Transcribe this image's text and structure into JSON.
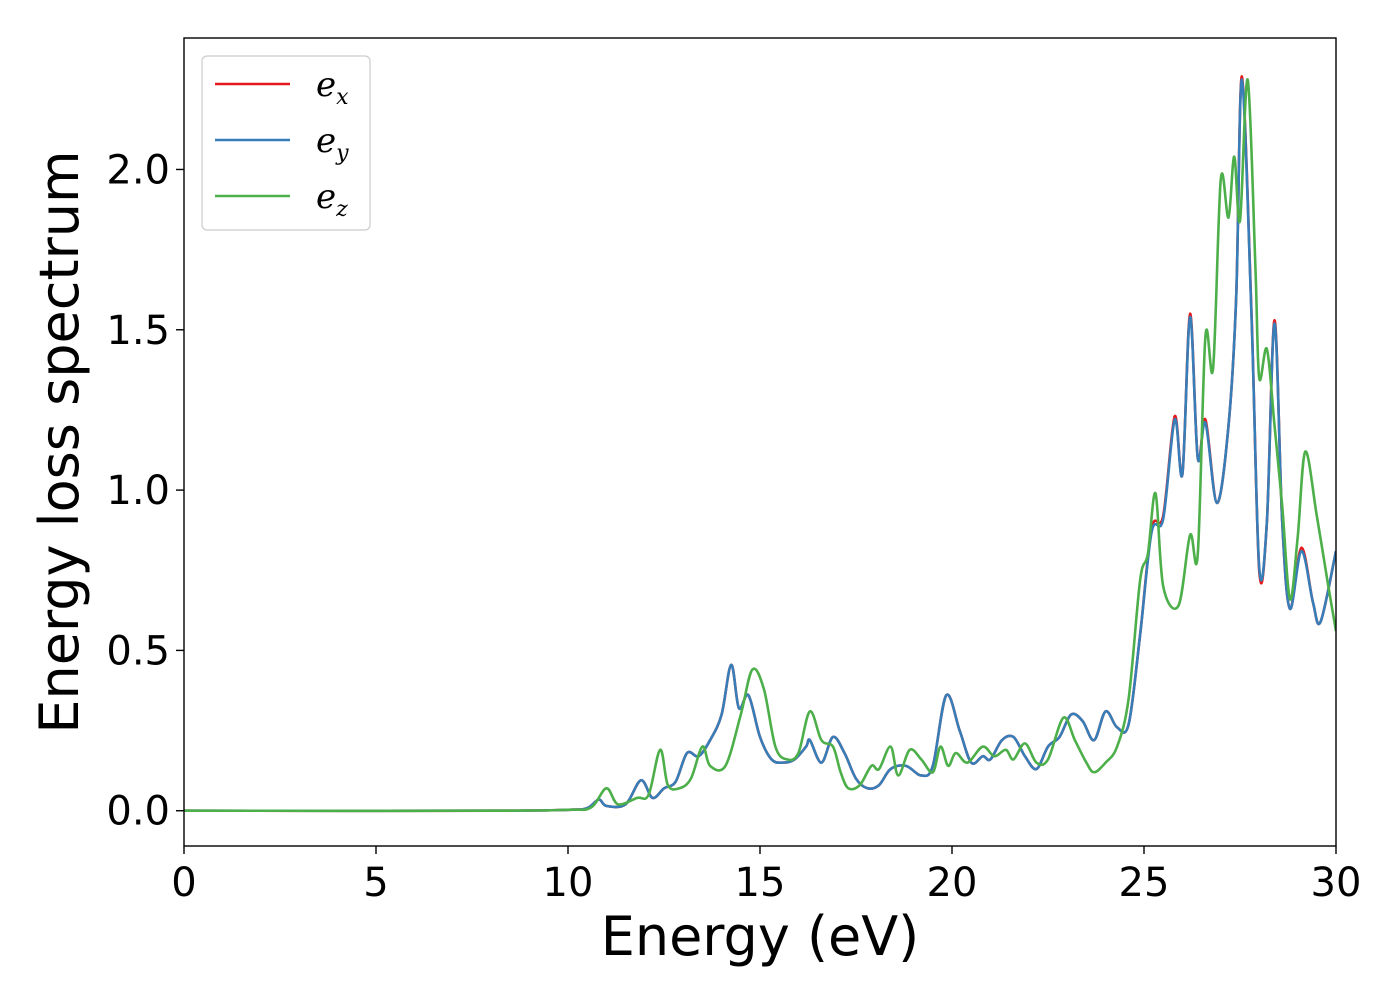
{
  "chart_data": {
    "type": "line",
    "title": "",
    "xlabel": "Energy (eV)",
    "ylabel": "Energy loss spectrum",
    "xlim": [
      0,
      30
    ],
    "ylim": [
      -0.11,
      2.41
    ],
    "xticks": [
      0,
      5,
      10,
      15,
      20,
      25,
      30
    ],
    "xtick_labels": [
      "0",
      "5",
      "10",
      "15",
      "20",
      "25",
      "30"
    ],
    "yticks": [
      0.0,
      0.5,
      1.0,
      1.5,
      2.0
    ],
    "ytick_labels": [
      "0.0",
      "0.5",
      "1.0",
      "1.5",
      "2.0"
    ],
    "grid": false,
    "legend_position": "top-left",
    "series": [
      {
        "name": "e_x",
        "label_base": "e",
        "label_sub": "x",
        "color": "#e41a1c",
        "points": [
          [
            0,
            0
          ],
          [
            8,
            0
          ],
          [
            10,
            0.003
          ],
          [
            10.5,
            0.008
          ],
          [
            10.8,
            0.035
          ],
          [
            11.0,
            0.015
          ],
          [
            11.5,
            0.02
          ],
          [
            11.9,
            0.095
          ],
          [
            12.2,
            0.04
          ],
          [
            12.5,
            0.07
          ],
          [
            12.8,
            0.09
          ],
          [
            13.1,
            0.18
          ],
          [
            13.4,
            0.17
          ],
          [
            13.7,
            0.22
          ],
          [
            14.0,
            0.3
          ],
          [
            14.25,
            0.455
          ],
          [
            14.45,
            0.32
          ],
          [
            14.7,
            0.36
          ],
          [
            15.0,
            0.23
          ],
          [
            15.3,
            0.16
          ],
          [
            15.6,
            0.15
          ],
          [
            15.9,
            0.16
          ],
          [
            16.2,
            0.2
          ],
          [
            16.3,
            0.22
          ],
          [
            16.6,
            0.15
          ],
          [
            16.9,
            0.23
          ],
          [
            17.2,
            0.18
          ],
          [
            17.5,
            0.1
          ],
          [
            17.8,
            0.07
          ],
          [
            18.1,
            0.08
          ],
          [
            18.4,
            0.13
          ],
          [
            18.8,
            0.14
          ],
          [
            19.2,
            0.11
          ],
          [
            19.5,
            0.14
          ],
          [
            19.85,
            0.36
          ],
          [
            20.2,
            0.25
          ],
          [
            20.5,
            0.15
          ],
          [
            20.8,
            0.17
          ],
          [
            21.0,
            0.16
          ],
          [
            21.3,
            0.22
          ],
          [
            21.6,
            0.23
          ],
          [
            21.9,
            0.17
          ],
          [
            22.2,
            0.13
          ],
          [
            22.5,
            0.2
          ],
          [
            22.8,
            0.23
          ],
          [
            23.1,
            0.3
          ],
          [
            23.4,
            0.28
          ],
          [
            23.7,
            0.22
          ],
          [
            24.0,
            0.31
          ],
          [
            24.3,
            0.26
          ],
          [
            24.6,
            0.27
          ],
          [
            24.9,
            0.55
          ],
          [
            25.2,
            0.88
          ],
          [
            25.5,
            0.92
          ],
          [
            25.8,
            1.23
          ],
          [
            26.0,
            1.05
          ],
          [
            26.2,
            1.55
          ],
          [
            26.4,
            1.1
          ],
          [
            26.6,
            1.22
          ],
          [
            26.9,
            0.96
          ],
          [
            27.2,
            1.2
          ],
          [
            27.4,
            1.6
          ],
          [
            27.55,
            2.29
          ],
          [
            27.8,
            1.55
          ],
          [
            28.0,
            0.75
          ],
          [
            28.2,
            0.9
          ],
          [
            28.4,
            1.53
          ],
          [
            28.6,
            0.9
          ],
          [
            28.8,
            0.63
          ],
          [
            29.1,
            0.82
          ],
          [
            29.4,
            0.65
          ],
          [
            29.6,
            0.59
          ],
          [
            30.0,
            0.81
          ]
        ]
      },
      {
        "name": "e_y",
        "label_base": "e",
        "label_sub": "y",
        "color": "#377eb8",
        "points": [
          [
            0,
            0
          ],
          [
            8,
            0
          ],
          [
            10,
            0.003
          ],
          [
            10.5,
            0.008
          ],
          [
            10.8,
            0.035
          ],
          [
            11.0,
            0.015
          ],
          [
            11.5,
            0.02
          ],
          [
            11.9,
            0.095
          ],
          [
            12.2,
            0.04
          ],
          [
            12.5,
            0.07
          ],
          [
            12.8,
            0.09
          ],
          [
            13.1,
            0.18
          ],
          [
            13.4,
            0.17
          ],
          [
            13.7,
            0.22
          ],
          [
            14.0,
            0.3
          ],
          [
            14.25,
            0.455
          ],
          [
            14.45,
            0.32
          ],
          [
            14.7,
            0.36
          ],
          [
            15.0,
            0.23
          ],
          [
            15.3,
            0.16
          ],
          [
            15.6,
            0.15
          ],
          [
            15.9,
            0.16
          ],
          [
            16.2,
            0.2
          ],
          [
            16.3,
            0.22
          ],
          [
            16.6,
            0.15
          ],
          [
            16.9,
            0.23
          ],
          [
            17.2,
            0.18
          ],
          [
            17.5,
            0.1
          ],
          [
            17.8,
            0.07
          ],
          [
            18.1,
            0.08
          ],
          [
            18.4,
            0.13
          ],
          [
            18.8,
            0.14
          ],
          [
            19.2,
            0.11
          ],
          [
            19.5,
            0.14
          ],
          [
            19.85,
            0.36
          ],
          [
            20.2,
            0.25
          ],
          [
            20.5,
            0.15
          ],
          [
            20.8,
            0.17
          ],
          [
            21.0,
            0.16
          ],
          [
            21.3,
            0.22
          ],
          [
            21.6,
            0.23
          ],
          [
            21.9,
            0.17
          ],
          [
            22.2,
            0.13
          ],
          [
            22.5,
            0.2
          ],
          [
            22.8,
            0.23
          ],
          [
            23.1,
            0.3
          ],
          [
            23.4,
            0.28
          ],
          [
            23.7,
            0.22
          ],
          [
            24.0,
            0.31
          ],
          [
            24.3,
            0.26
          ],
          [
            24.6,
            0.27
          ],
          [
            24.9,
            0.55
          ],
          [
            25.2,
            0.87
          ],
          [
            25.5,
            0.91
          ],
          [
            25.8,
            1.22
          ],
          [
            26.0,
            1.05
          ],
          [
            26.2,
            1.54
          ],
          [
            26.4,
            1.1
          ],
          [
            26.6,
            1.21
          ],
          [
            26.9,
            0.96
          ],
          [
            27.2,
            1.2
          ],
          [
            27.4,
            1.6
          ],
          [
            27.55,
            2.28
          ],
          [
            27.8,
            1.54
          ],
          [
            28.0,
            0.76
          ],
          [
            28.2,
            0.9
          ],
          [
            28.4,
            1.52
          ],
          [
            28.6,
            0.9
          ],
          [
            28.8,
            0.63
          ],
          [
            29.1,
            0.81
          ],
          [
            29.4,
            0.65
          ],
          [
            29.6,
            0.59
          ],
          [
            30.0,
            0.81
          ]
        ]
      },
      {
        "name": "e_z",
        "label_base": "e",
        "label_sub": "z",
        "color": "#4daf4a",
        "points": [
          [
            0,
            0
          ],
          [
            8,
            0
          ],
          [
            10,
            0.003
          ],
          [
            10.6,
            0.01
          ],
          [
            11.0,
            0.07
          ],
          [
            11.3,
            0.02
          ],
          [
            11.8,
            0.04
          ],
          [
            12.1,
            0.05
          ],
          [
            12.4,
            0.19
          ],
          [
            12.6,
            0.08
          ],
          [
            12.9,
            0.07
          ],
          [
            13.2,
            0.1
          ],
          [
            13.5,
            0.2
          ],
          [
            13.7,
            0.14
          ],
          [
            14.1,
            0.14
          ],
          [
            14.5,
            0.3
          ],
          [
            14.8,
            0.44
          ],
          [
            15.1,
            0.38
          ],
          [
            15.4,
            0.2
          ],
          [
            15.7,
            0.16
          ],
          [
            16.0,
            0.18
          ],
          [
            16.3,
            0.31
          ],
          [
            16.6,
            0.22
          ],
          [
            16.9,
            0.2
          ],
          [
            17.1,
            0.12
          ],
          [
            17.3,
            0.07
          ],
          [
            17.6,
            0.08
          ],
          [
            17.9,
            0.14
          ],
          [
            18.1,
            0.13
          ],
          [
            18.4,
            0.2
          ],
          [
            18.6,
            0.11
          ],
          [
            18.9,
            0.19
          ],
          [
            19.2,
            0.16
          ],
          [
            19.5,
            0.12
          ],
          [
            19.7,
            0.2
          ],
          [
            19.9,
            0.14
          ],
          [
            20.1,
            0.18
          ],
          [
            20.4,
            0.15
          ],
          [
            20.8,
            0.2
          ],
          [
            21.1,
            0.17
          ],
          [
            21.4,
            0.19
          ],
          [
            21.6,
            0.16
          ],
          [
            21.9,
            0.21
          ],
          [
            22.2,
            0.15
          ],
          [
            22.5,
            0.16
          ],
          [
            22.9,
            0.29
          ],
          [
            23.2,
            0.22
          ],
          [
            23.5,
            0.15
          ],
          [
            23.7,
            0.12
          ],
          [
            24.0,
            0.15
          ],
          [
            24.3,
            0.2
          ],
          [
            24.6,
            0.35
          ],
          [
            24.9,
            0.72
          ],
          [
            25.1,
            0.8
          ],
          [
            25.3,
            0.99
          ],
          [
            25.5,
            0.7
          ],
          [
            25.9,
            0.64
          ],
          [
            26.2,
            0.86
          ],
          [
            26.4,
            0.8
          ],
          [
            26.6,
            1.48
          ],
          [
            26.8,
            1.38
          ],
          [
            27.0,
            1.97
          ],
          [
            27.2,
            1.85
          ],
          [
            27.35,
            2.04
          ],
          [
            27.5,
            1.84
          ],
          [
            27.7,
            2.28
          ],
          [
            27.9,
            1.7
          ],
          [
            28.0,
            1.35
          ],
          [
            28.2,
            1.44
          ],
          [
            28.4,
            1.2
          ],
          [
            28.6,
            0.95
          ],
          [
            28.8,
            0.66
          ],
          [
            29.0,
            0.85
          ],
          [
            29.2,
            1.12
          ],
          [
            29.5,
            0.92
          ],
          [
            29.8,
            0.7
          ],
          [
            30.0,
            0.56
          ]
        ]
      }
    ]
  }
}
